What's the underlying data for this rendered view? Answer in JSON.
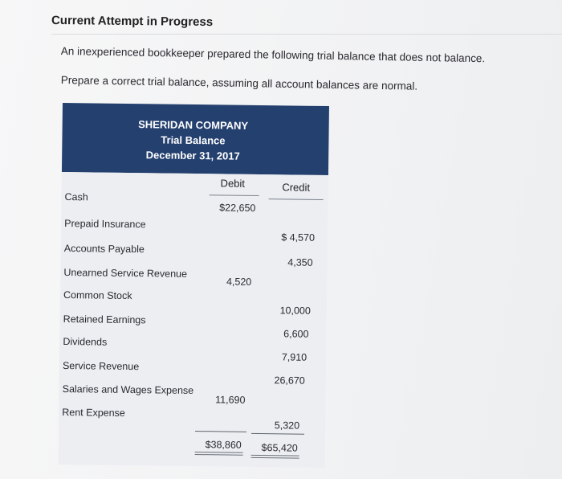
{
  "section": {
    "title": "Current Attempt in Progress"
  },
  "problem": {
    "intro": "An inexperienced bookkeeper prepared the following trial balance that does not balance.",
    "instruction": "Prepare a correct trial balance, assuming all account balances are normal."
  },
  "trial_balance": {
    "company": "SHERIDAN COMPANY",
    "statement": "Trial Balance",
    "date": "December 31, 2017",
    "debit_label": "Debit",
    "credit_label": "Credit",
    "rows": [
      {
        "account": "Cash",
        "debit": "$22,650",
        "credit": ""
      },
      {
        "account": "Prepaid Insurance",
        "debit": "",
        "credit": "$ 4,570"
      },
      {
        "account": "Accounts Payable",
        "debit": "",
        "credit": "4,350"
      },
      {
        "account": "Unearned Service Revenue",
        "debit": "4,520",
        "credit": ""
      },
      {
        "account": "Common Stock",
        "debit": "",
        "credit": "10,000"
      },
      {
        "account": "Retained Earnings",
        "debit": "",
        "credit": "6,600"
      },
      {
        "account": "Dividends",
        "debit": "",
        "credit": "7,910"
      },
      {
        "account": "Service Revenue",
        "debit": "",
        "credit": "26,670"
      },
      {
        "account": "Salaries and Wages Expense",
        "debit": "11,690",
        "credit": ""
      },
      {
        "account": "Rent Expense",
        "debit": "",
        "credit": "5,320"
      }
    ],
    "total_debit": "$38,860",
    "total_credit": "$65,420"
  }
}
